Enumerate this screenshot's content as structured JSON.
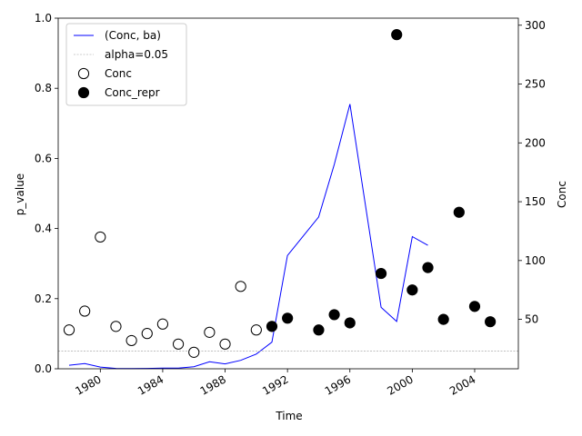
{
  "chart_data": {
    "type": "line",
    "xlabel": "Time",
    "ylabel": "p_value",
    "ylabel_right": "Conc",
    "x_range": [
      1977.3,
      2006.8
    ],
    "ylim": [
      0,
      1
    ],
    "ylim_right": [
      8,
      306
    ],
    "x_ticks": [
      1980,
      1984,
      1988,
      1992,
      1996,
      2000,
      2004
    ],
    "x_tick_labels": [
      "1980",
      "1984",
      "1988",
      "1992",
      "1996",
      "2000",
      "2004"
    ],
    "y_ticks": [
      0.0,
      0.2,
      0.4,
      0.6,
      0.8,
      1.0
    ],
    "y_tick_labels": [
      "0.0",
      "0.2",
      "0.4",
      "0.6",
      "0.8",
      "1.0"
    ],
    "y_right_ticks": [
      50,
      100,
      150,
      200,
      250,
      300
    ],
    "y_right_tick_labels": [
      "50",
      "100",
      "150",
      "200",
      "250",
      "300"
    ],
    "grid": false,
    "legend_position": "upper left",
    "alpha": 0.05,
    "series": [
      {
        "name": "(Conc, ba)",
        "kind": "line",
        "axis": "left",
        "color": "#0000ff",
        "points": [
          [
            1978,
            0.01
          ],
          [
            1979,
            0.015
          ],
          [
            1980,
            0.005
          ],
          [
            1981,
            0.001
          ],
          [
            1982,
            0.0005
          ],
          [
            1983,
            0.001
          ],
          [
            1984,
            0.002
          ],
          [
            1985,
            0.002
          ],
          [
            1986,
            0.006
          ],
          [
            1987,
            0.02
          ],
          [
            1988,
            0.014
          ],
          [
            1989,
            0.024
          ],
          [
            1990,
            0.042
          ],
          [
            1991,
            0.076
          ],
          [
            1992,
            0.323
          ],
          [
            1994,
            0.433
          ],
          [
            1995,
            0.583
          ],
          [
            1996,
            0.755
          ],
          [
            1998,
            0.175
          ],
          [
            1999,
            0.135
          ],
          [
            2000,
            0.377
          ],
          [
            2001,
            0.352
          ]
        ]
      },
      {
        "name": "alpha=0.05",
        "kind": "hline",
        "axis": "left",
        "color": "#999999",
        "value": 0.05
      },
      {
        "name": "Conc",
        "kind": "scatter",
        "axis": "right",
        "fill": "#ffffff",
        "stroke": "#000000",
        "points": [
          [
            1978,
            41
          ],
          [
            1979,
            57
          ],
          [
            1980,
            120
          ],
          [
            1981,
            44
          ],
          [
            1982,
            32
          ],
          [
            1983,
            38
          ],
          [
            1984,
            46
          ],
          [
            1985,
            29
          ],
          [
            1986,
            22
          ],
          [
            1987,
            39
          ],
          [
            1988,
            29
          ],
          [
            1989,
            78
          ],
          [
            1990,
            41
          ]
        ]
      },
      {
        "name": "Conc_repr",
        "kind": "scatter",
        "axis": "right",
        "fill": "#000000",
        "stroke": "#000000",
        "points": [
          [
            1991,
            44
          ],
          [
            1992,
            51
          ],
          [
            1994,
            41
          ],
          [
            1995,
            54
          ],
          [
            1996,
            47
          ],
          [
            1998,
            89
          ],
          [
            1999,
            292
          ],
          [
            2000,
            75
          ],
          [
            2001,
            94
          ],
          [
            2002,
            50
          ],
          [
            2003,
            141
          ],
          [
            2004,
            61
          ],
          [
            2005,
            48
          ]
        ]
      }
    ]
  }
}
